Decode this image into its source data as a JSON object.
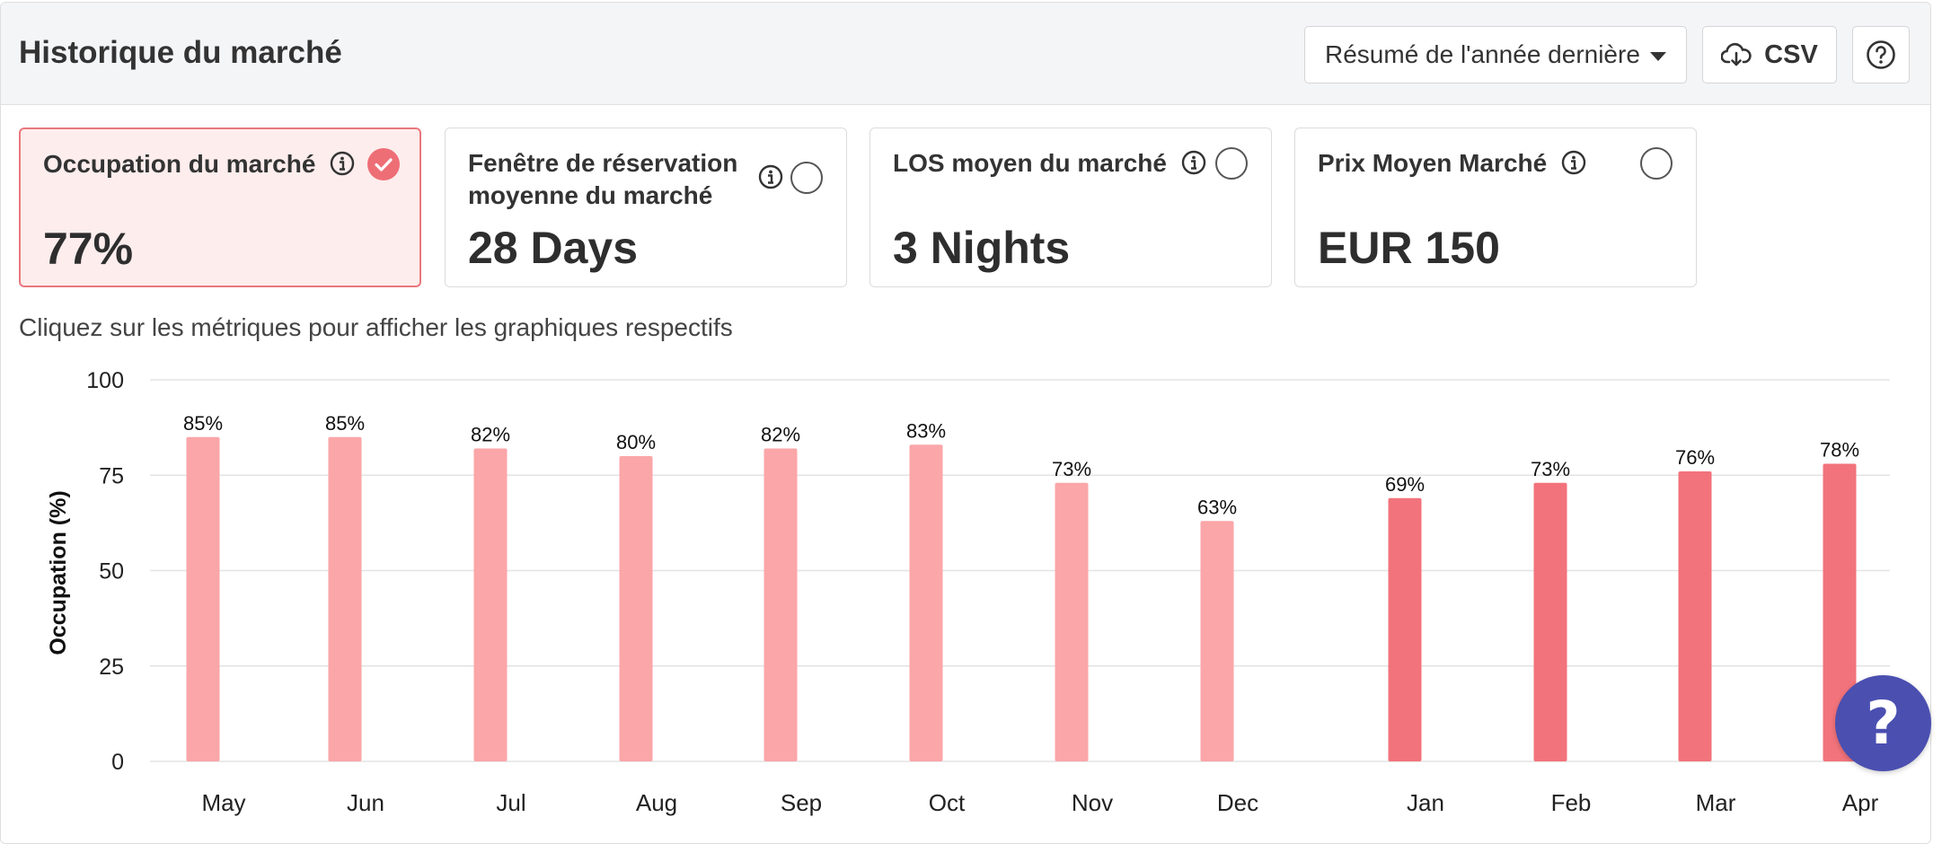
{
  "header": {
    "title": "Historique du marché",
    "period_select": "Résumé de l'année dernière",
    "csv_label": "CSV"
  },
  "metrics": [
    {
      "label": "Occupation du marché",
      "value": "77%",
      "selected": true
    },
    {
      "label_line1": "Fenêtre de réservation",
      "label_line2": "moyenne du marché",
      "value": "28 Days",
      "selected": false
    },
    {
      "label": "LOS moyen du marché",
      "value": "3 Nights",
      "selected": false
    },
    {
      "label": "Prix Moyen Marché",
      "value": "EUR 150",
      "selected": false
    }
  ],
  "hint": "Cliquez sur les métriques pour afficher les graphiques respectifs",
  "colors": {
    "past": "#fba6a8",
    "recent": "#f2737b",
    "accent": "#ee6e76",
    "fab": "#4b4fb0"
  },
  "chart_data": {
    "type": "bar",
    "ylabel": "Occupation (%)",
    "xlabel": "",
    "ylim": [
      0,
      100
    ],
    "yticks": [
      0,
      25,
      50,
      75,
      100
    ],
    "grid": true,
    "categories": [
      "May",
      "Jun",
      "Jul",
      "Aug",
      "Sep",
      "Oct",
      "Nov",
      "Dec",
      "Jan",
      "Feb",
      "Mar",
      "Apr"
    ],
    "values": [
      85,
      85,
      82,
      80,
      82,
      83,
      73,
      63,
      69,
      73,
      76,
      78
    ],
    "value_labels": [
      "85%",
      "85%",
      "82%",
      "80%",
      "82%",
      "83%",
      "73%",
      "63%",
      "69%",
      "73%",
      "76%",
      "78%"
    ],
    "highlighted": [
      false,
      false,
      false,
      false,
      false,
      false,
      false,
      false,
      true,
      true,
      true,
      true
    ]
  },
  "fab": {
    "label": "?"
  }
}
